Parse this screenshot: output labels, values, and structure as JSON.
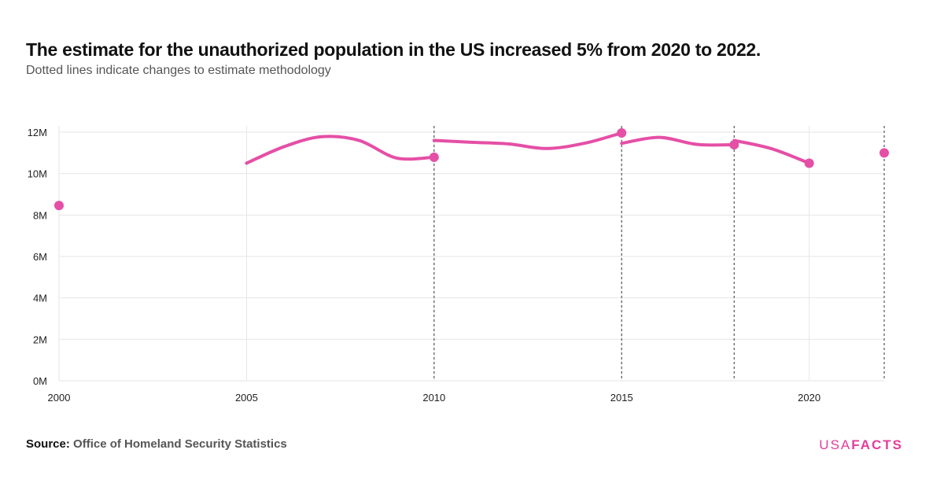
{
  "header": {
    "title": "The estimate for the unauthorized population in the US increased 5% from 2020 to 2022.",
    "subtitle": "Dotted lines indicate changes to estimate methodology"
  },
  "footer": {
    "source_label": "Source:",
    "source_value": "Office of Homeland Security Statistics",
    "brand_usa": "USA",
    "brand_facts": "FACTS"
  },
  "colors": {
    "series": "#e54fa6",
    "grid": "#e6e6e6",
    "methodology_line": "#555555",
    "brand": "#e23e9a"
  },
  "chart_data": {
    "type": "line",
    "title": "The estimate for the unauthorized population in the US increased 5% from 2020 to 2022.",
    "subtitle": "Dotted lines indicate changes to estimate methodology",
    "xlabel": "",
    "ylabel": "",
    "xlim": [
      2000,
      2022
    ],
    "ylim": [
      0,
      12000000
    ],
    "x_ticks": [
      2000,
      2005,
      2010,
      2015,
      2020
    ],
    "x_tick_labels": [
      "2000",
      "2005",
      "2010",
      "2015",
      "2020"
    ],
    "y_ticks": [
      0,
      2000000,
      4000000,
      6000000,
      8000000,
      10000000,
      12000000
    ],
    "y_tick_labels": [
      "0M",
      "2M",
      "4M",
      "6M",
      "8M",
      "10M",
      "12M"
    ],
    "grid": "horizontal and vertical",
    "methodology_changes": [
      2010,
      2015,
      2018,
      2022
    ],
    "segments": [
      {
        "x": [
          2000
        ],
        "y": [
          8460000
        ]
      },
      {
        "x": [
          2005,
          2006,
          2007,
          2008,
          2009,
          2010
        ],
        "y": [
          10500000,
          11300000,
          11780000,
          11600000,
          10750000,
          10790000
        ]
      },
      {
        "x": [
          2010,
          2011,
          2012,
          2013,
          2014,
          2015
        ],
        "y": [
          11600000,
          11510000,
          11430000,
          11210000,
          11460000,
          11960000
        ]
      },
      {
        "x": [
          2015,
          2016,
          2017,
          2018
        ],
        "y": [
          11460000,
          11750000,
          11410000,
          11390000
        ]
      },
      {
        "x": [
          2018,
          2019,
          2020
        ],
        "y": [
          11600000,
          11200000,
          10500000
        ]
      },
      {
        "x": [
          2022
        ],
        "y": [
          11000000
        ]
      }
    ],
    "markers": [
      {
        "x": 2000,
        "y": 8460000
      },
      {
        "x": 2010,
        "y": 10790000
      },
      {
        "x": 2015,
        "y": 11960000
      },
      {
        "x": 2018,
        "y": 11390000
      },
      {
        "x": 2020,
        "y": 10500000
      },
      {
        "x": 2022,
        "y": 11000000
      }
    ]
  }
}
